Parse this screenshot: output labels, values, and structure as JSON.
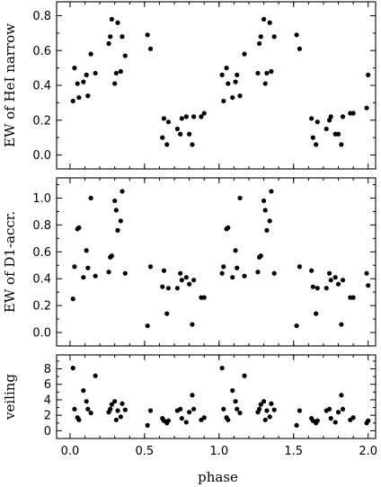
{
  "chart_data": [
    {
      "type": "scatter",
      "panel": "top",
      "ylabel": "EW of HeI narrow",
      "xlim": [
        -0.09,
        2.05
      ],
      "ylim": [
        -0.08,
        0.88
      ],
      "yticks": [
        0.0,
        0.2,
        0.4,
        0.6,
        0.8
      ],
      "ytick_labels": [
        "0.0",
        "0.2",
        "0.4",
        "0.6",
        "0.8"
      ],
      "x": [
        0.02,
        0.03,
        0.05,
        0.06,
        0.09,
        0.11,
        0.12,
        0.14,
        0.17,
        0.26,
        0.27,
        0.28,
        0.3,
        0.31,
        0.32,
        0.34,
        0.35,
        0.37,
        0.52,
        0.54,
        0.62,
        0.63,
        0.65,
        0.66,
        0.72,
        0.74,
        0.75,
        0.78,
        0.8,
        0.82,
        0.83,
        0.88,
        0.9,
        1.02,
        1.03,
        1.05,
        1.06,
        1.09,
        1.11,
        1.12,
        1.14,
        1.17,
        1.26,
        1.27,
        1.28,
        1.3,
        1.31,
        1.32,
        1.34,
        1.35,
        1.37,
        1.52,
        1.54,
        1.62,
        1.63,
        1.65,
        1.66,
        1.72,
        1.74,
        1.75,
        1.78,
        1.8,
        1.82,
        1.83,
        1.88,
        1.9,
        1.99,
        2.0
      ],
      "y": [
        0.31,
        0.5,
        0.41,
        0.33,
        0.42,
        0.46,
        0.34,
        0.58,
        0.47,
        0.64,
        0.68,
        0.78,
        0.41,
        0.47,
        0.76,
        0.48,
        0.68,
        0.57,
        0.69,
        0.61,
        0.1,
        0.21,
        0.06,
        0.19,
        0.15,
        0.12,
        0.21,
        0.22,
        0.12,
        0.06,
        0.22,
        0.22,
        0.24,
        0.46,
        0.31,
        0.5,
        0.41,
        0.33,
        0.42,
        0.46,
        0.34,
        0.58,
        0.47,
        0.64,
        0.68,
        0.78,
        0.41,
        0.47,
        0.76,
        0.48,
        0.68,
        0.69,
        0.61,
        0.21,
        0.1,
        0.06,
        0.19,
        0.15,
        0.2,
        0.22,
        0.12,
        0.12,
        0.06,
        0.22,
        0.24,
        0.24,
        0.27,
        0.46
      ]
    },
    {
      "type": "scatter",
      "panel": "middle",
      "ylabel": "EW of D1-accr.",
      "xlim": [
        -0.09,
        2.05
      ],
      "ylim": [
        -0.1,
        1.15
      ],
      "yticks": [
        0.0,
        0.2,
        0.4,
        0.6,
        0.8,
        1.0
      ],
      "ytick_labels": [
        "0.0",
        "0.2",
        "0.4",
        "0.6",
        "0.8",
        "1.0"
      ],
      "x": [
        0.02,
        0.03,
        0.05,
        0.06,
        0.09,
        0.11,
        0.12,
        0.14,
        0.17,
        0.26,
        0.27,
        0.28,
        0.3,
        0.31,
        0.32,
        0.34,
        0.35,
        0.37,
        0.52,
        0.54,
        0.62,
        0.63,
        0.65,
        0.66,
        0.72,
        0.74,
        0.75,
        0.78,
        0.8,
        0.82,
        0.83,
        0.88,
        0.9,
        1.02,
        1.03,
        1.05,
        1.06,
        1.09,
        1.11,
        1.12,
        1.14,
        1.17,
        1.26,
        1.27,
        1.28,
        1.3,
        1.31,
        1.32,
        1.34,
        1.35,
        1.37,
        1.52,
        1.54,
        1.62,
        1.63,
        1.65,
        1.66,
        1.72,
        1.74,
        1.75,
        1.78,
        1.8,
        1.82,
        1.83,
        1.88,
        1.9,
        1.99,
        2.0
      ],
      "y": [
        0.25,
        0.49,
        0.77,
        0.78,
        0.41,
        0.61,
        0.48,
        1.0,
        0.42,
        0.45,
        0.56,
        0.57,
        0.98,
        0.91,
        0.76,
        0.83,
        1.05,
        0.44,
        0.05,
        0.49,
        0.34,
        0.46,
        0.14,
        0.33,
        0.33,
        0.44,
        0.39,
        0.41,
        0.36,
        0.06,
        0.39,
        0.26,
        0.26,
        0.44,
        0.49,
        0.77,
        0.78,
        0.41,
        0.61,
        0.48,
        1.0,
        0.42,
        0.45,
        0.56,
        0.57,
        0.98,
        0.91,
        0.76,
        0.83,
        1.05,
        0.44,
        0.05,
        0.49,
        0.46,
        0.34,
        0.14,
        0.33,
        0.33,
        0.44,
        0.39,
        0.41,
        0.36,
        0.06,
        0.39,
        0.26,
        0.26,
        0.44,
        0.35
      ]
    },
    {
      "type": "scatter",
      "panel": "bottom",
      "ylabel": "veiling",
      "xlabel": "phase",
      "xlim": [
        -0.09,
        2.05
      ],
      "ylim": [
        -1.0,
        9.8
      ],
      "yticks": [
        0,
        2,
        4,
        6,
        8
      ],
      "ytick_labels": [
        "0",
        "2",
        "4",
        "6",
        "8"
      ],
      "xticks": [
        0.0,
        0.5,
        1.0,
        1.5,
        2.0
      ],
      "xtick_labels": [
        "0.0",
        "0.5",
        "1.0",
        "1.5",
        "2.0"
      ],
      "x": [
        0.02,
        0.03,
        0.05,
        0.06,
        0.09,
        0.11,
        0.12,
        0.14,
        0.17,
        0.26,
        0.27,
        0.28,
        0.3,
        0.31,
        0.32,
        0.34,
        0.35,
        0.37,
        0.52,
        0.54,
        0.62,
        0.63,
        0.65,
        0.66,
        0.72,
        0.74,
        0.75,
        0.78,
        0.8,
        0.82,
        0.83,
        0.88,
        0.9,
        1.02,
        1.03,
        1.05,
        1.06,
        1.09,
        1.11,
        1.12,
        1.14,
        1.17,
        1.26,
        1.27,
        1.28,
        1.3,
        1.31,
        1.32,
        1.34,
        1.35,
        1.37,
        1.52,
        1.54,
        1.62,
        1.63,
        1.65,
        1.66,
        1.72,
        1.74,
        1.75,
        1.78,
        1.8,
        1.82,
        1.83,
        1.88,
        1.9,
        1.99,
        2.0
      ],
      "y": [
        8.1,
        2.8,
        1.7,
        1.4,
        5.2,
        3.8,
        2.8,
        2.3,
        7.1,
        2.4,
        2.8,
        3.4,
        3.8,
        1.4,
        2.6,
        1.8,
        3.5,
        2.7,
        0.7,
        2.6,
        1.6,
        1.3,
        1.0,
        1.3,
        2.6,
        2.8,
        1.6,
        1.1,
        2.4,
        4.6,
        2.8,
        1.4,
        1.7,
        8.1,
        2.8,
        1.7,
        1.4,
        5.2,
        3.8,
        2.8,
        2.3,
        7.1,
        2.4,
        2.8,
        3.4,
        3.8,
        1.4,
        2.6,
        1.8,
        3.5,
        2.7,
        0.7,
        2.6,
        1.6,
        1.3,
        1.0,
        1.3,
        2.6,
        2.8,
        1.6,
        1.1,
        2.4,
        4.6,
        2.8,
        1.4,
        1.7,
        1.0,
        1.3
      ]
    }
  ]
}
